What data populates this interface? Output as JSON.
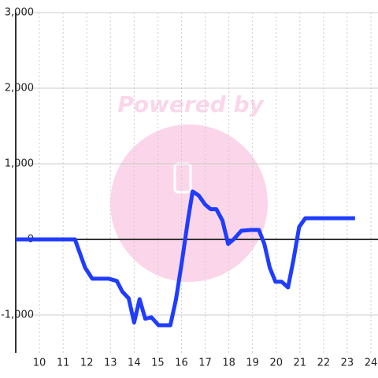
{
  "chart_data": {
    "type": "line",
    "watermark": "Powered by",
    "x": [
      9,
      11.5,
      11.93,
      12.23,
      12.93,
      13.27,
      13.5,
      13.77,
      14.0,
      14.23,
      14.47,
      14.73,
      15.03,
      15.53,
      15.77,
      16.03,
      16.27,
      16.47,
      16.73,
      17.0,
      17.23,
      17.47,
      17.73,
      17.97,
      18.2,
      18.53,
      18.93,
      19.27,
      19.5,
      19.73,
      19.97,
      20.23,
      20.5,
      20.73,
      20.97,
      21.23,
      23.33
    ],
    "series": [
      {
        "color": "#1f3cff",
        "values": [
          0,
          0,
          -375,
          -520,
          -520,
          -550,
          -690,
          -780,
          -1100,
          -790,
          -1050,
          -1030,
          -1135,
          -1135,
          -790,
          -270,
          250,
          635,
          580,
          460,
          400,
          400,
          250,
          -60,
          0,
          115,
          125,
          125,
          -60,
          -375,
          -560,
          -560,
          -635,
          -270,
          165,
          280,
          280
        ]
      }
    ],
    "xlim": [
      9,
      24.3
    ],
    "ylim": [
      -1500,
      3000
    ],
    "xticks": [
      10,
      11,
      12,
      13,
      14,
      15,
      16,
      17,
      18,
      19,
      20,
      21,
      22,
      23,
      24
    ],
    "yticks": [
      {
        "value": -1000,
        "label": "-1,000"
      },
      0,
      {
        "value": 1000,
        "label": "1,000"
      },
      {
        "value": 2000,
        "label": "2,000"
      },
      {
        "value": 3000,
        "label": "3,000"
      }
    ],
    "grid": true
  }
}
